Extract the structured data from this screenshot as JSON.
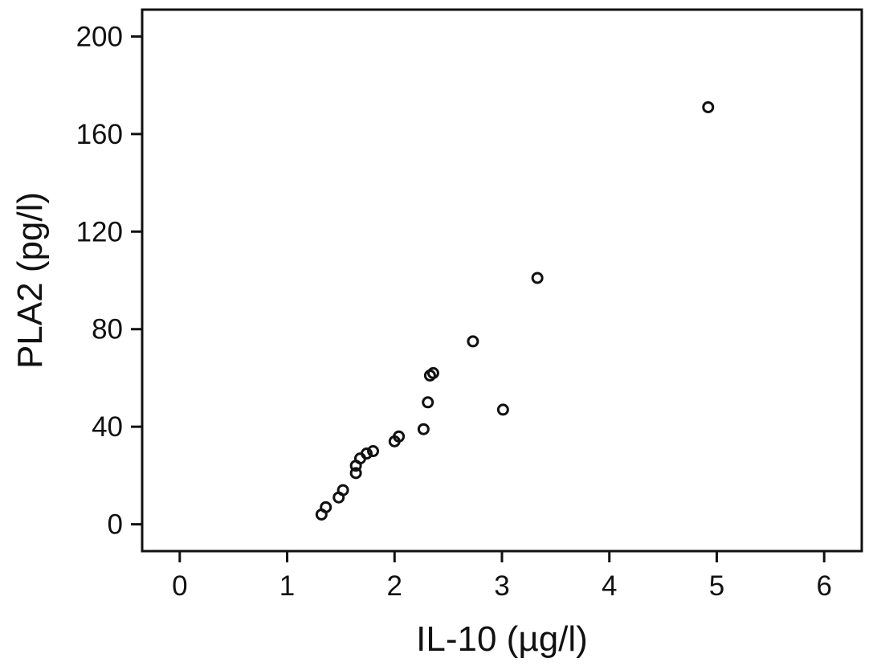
{
  "chart_data": {
    "type": "scatter",
    "title": "",
    "xlabel": "IL-10 (µg/l)",
    "ylabel": "PLA2 (pg/l)",
    "xlim": [
      -0.35,
      6.35
    ],
    "ylim": [
      -11,
      211
    ],
    "x_ticks": [
      0,
      1,
      2,
      3,
      4,
      5,
      6
    ],
    "y_ticks": [
      0,
      40,
      80,
      120,
      160,
      200
    ],
    "x_tick_labels": [
      "0",
      "1",
      "2",
      "3",
      "4",
      "5",
      "6"
    ],
    "y_tick_labels": [
      "0",
      "40",
      "80",
      "120",
      "160",
      "200"
    ],
    "grid": false,
    "legend": "none",
    "marker": "open-circle",
    "marker_color": "#111111",
    "points": [
      {
        "x": 1.32,
        "y": 4
      },
      {
        "x": 1.36,
        "y": 7
      },
      {
        "x": 1.48,
        "y": 11
      },
      {
        "x": 1.52,
        "y": 14
      },
      {
        "x": 1.64,
        "y": 21
      },
      {
        "x": 1.64,
        "y": 24
      },
      {
        "x": 1.68,
        "y": 27
      },
      {
        "x": 1.74,
        "y": 29
      },
      {
        "x": 1.8,
        "y": 30
      },
      {
        "x": 2.0,
        "y": 34
      },
      {
        "x": 2.04,
        "y": 36
      },
      {
        "x": 2.27,
        "y": 39
      },
      {
        "x": 2.31,
        "y": 50
      },
      {
        "x": 2.33,
        "y": 61
      },
      {
        "x": 2.36,
        "y": 62
      },
      {
        "x": 2.73,
        "y": 75
      },
      {
        "x": 3.01,
        "y": 47
      },
      {
        "x": 3.33,
        "y": 101
      },
      {
        "x": 4.92,
        "y": 171
      }
    ]
  }
}
